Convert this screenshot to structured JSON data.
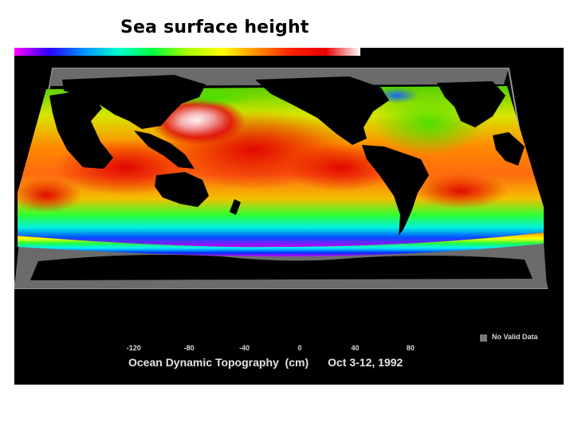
{
  "title": "Sea surface height",
  "legend": {
    "tick_labels": [
      "-120",
      "-80",
      "-40",
      "0",
      "40",
      "80"
    ],
    "tick_values": [
      -120,
      -80,
      -40,
      0,
      40,
      80
    ],
    "range": [
      -140,
      110
    ],
    "no_data_label": "No Valid Data",
    "no_data_color": "#7a7a7a"
  },
  "caption": {
    "measure": "Ocean Dynamic Topography  (cm)",
    "date": "Oct 3-12, 1992"
  },
  "colors": {
    "background": "#000000",
    "land": "#000000",
    "ice": "#6b6b6b",
    "scale_stops": [
      "#ff00ff",
      "#2d00ff",
      "#0090ff",
      "#00ffd0",
      "#00ff40",
      "#a8ff00",
      "#ffff00",
      "#ff9000",
      "#ff2000",
      "#e80000",
      "#ffffff"
    ]
  }
}
